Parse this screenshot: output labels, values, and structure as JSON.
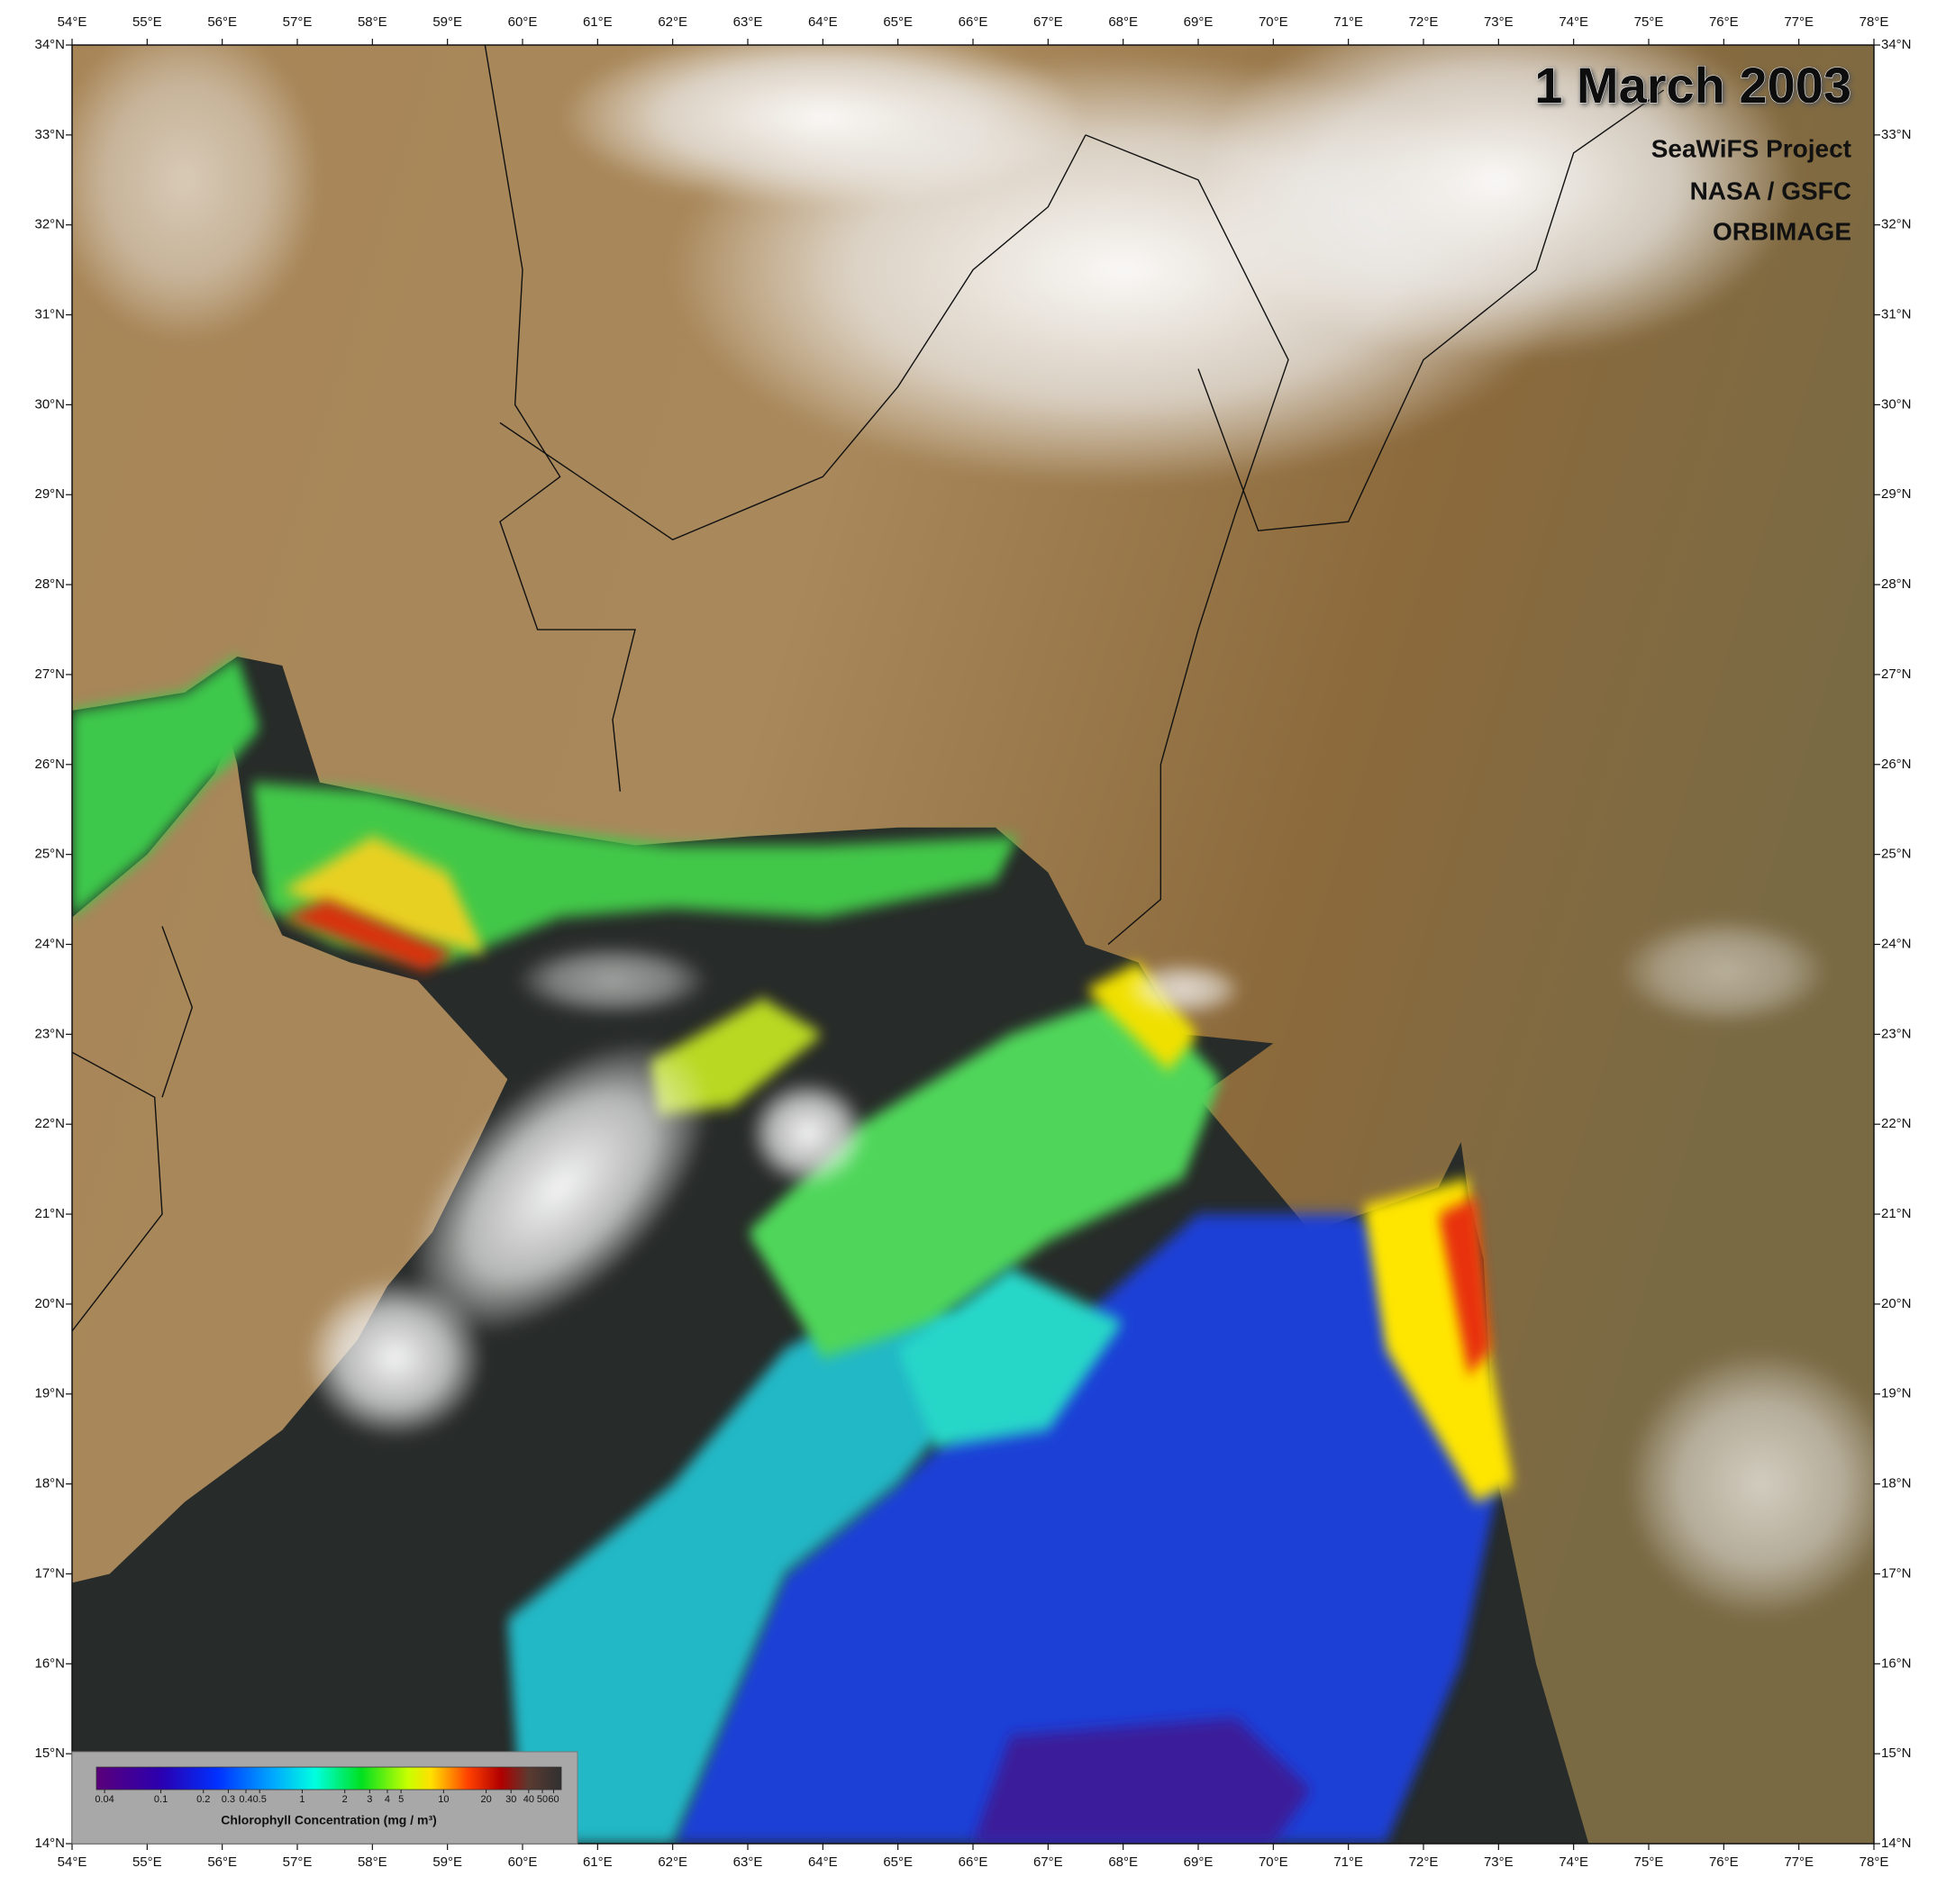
{
  "map": {
    "title": "1 March 2003",
    "credits": [
      "SeaWiFS Project",
      "NASA / GSFC",
      "ORBIMAGE"
    ],
    "lonlim": [
      54,
      78
    ],
    "latlim": [
      14,
      34
    ],
    "lonticks": [
      {
        "value": 54,
        "label": "54°E"
      },
      {
        "value": 55,
        "label": "55°E"
      },
      {
        "value": 56,
        "label": "56°E"
      },
      {
        "value": 57,
        "label": "57°E"
      },
      {
        "value": 58,
        "label": "58°E"
      },
      {
        "value": 59,
        "label": "59°E"
      },
      {
        "value": 60,
        "label": "60°E"
      },
      {
        "value": 61,
        "label": "61°E"
      },
      {
        "value": 62,
        "label": "62°E"
      },
      {
        "value": 63,
        "label": "63°E"
      },
      {
        "value": 64,
        "label": "64°E"
      },
      {
        "value": 65,
        "label": "65°E"
      },
      {
        "value": 66,
        "label": "66°E"
      },
      {
        "value": 67,
        "label": "67°E"
      },
      {
        "value": 68,
        "label": "68°E"
      },
      {
        "value": 69,
        "label": "69°E"
      },
      {
        "value": 70,
        "label": "70°E"
      },
      {
        "value": 71,
        "label": "71°E"
      },
      {
        "value": 72,
        "label": "72°E"
      },
      {
        "value": 73,
        "label": "73°E"
      },
      {
        "value": 74,
        "label": "74°E"
      },
      {
        "value": 75,
        "label": "75°E"
      },
      {
        "value": 76,
        "label": "76°E"
      },
      {
        "value": 77,
        "label": "77°E"
      },
      {
        "value": 78,
        "label": "78°E"
      }
    ],
    "latticks": [
      {
        "value": 14,
        "label": "14°N"
      },
      {
        "value": 15,
        "label": "15°N"
      },
      {
        "value": 16,
        "label": "16°N"
      },
      {
        "value": 17,
        "label": "17°N"
      },
      {
        "value": 18,
        "label": "18°N"
      },
      {
        "value": 19,
        "label": "19°N"
      },
      {
        "value": 20,
        "label": "20°N"
      },
      {
        "value": 21,
        "label": "21°N"
      },
      {
        "value": 22,
        "label": "22°N"
      },
      {
        "value": 23,
        "label": "23°N"
      },
      {
        "value": 24,
        "label": "24°N"
      },
      {
        "value": 25,
        "label": "25°N"
      },
      {
        "value": 26,
        "label": "26°N"
      },
      {
        "value": 27,
        "label": "27°N"
      },
      {
        "value": 28,
        "label": "28°N"
      },
      {
        "value": 29,
        "label": "29°N"
      },
      {
        "value": 30,
        "label": "30°N"
      },
      {
        "value": 31,
        "label": "31°N"
      },
      {
        "value": 32,
        "label": "32°N"
      },
      {
        "value": 33,
        "label": "33°N"
      },
      {
        "value": 34,
        "label": "34°N"
      }
    ],
    "colorbar": {
      "label": "Chlorophyll Concentration (mg / m³)",
      "log": true,
      "lim": [
        0.035,
        68
      ],
      "ticks": [
        0.04,
        0.1,
        0.2,
        0.3,
        0.4,
        0.5,
        1,
        2,
        3,
        4,
        5,
        10,
        20,
        30,
        40,
        50,
        60
      ]
    }
  }
}
